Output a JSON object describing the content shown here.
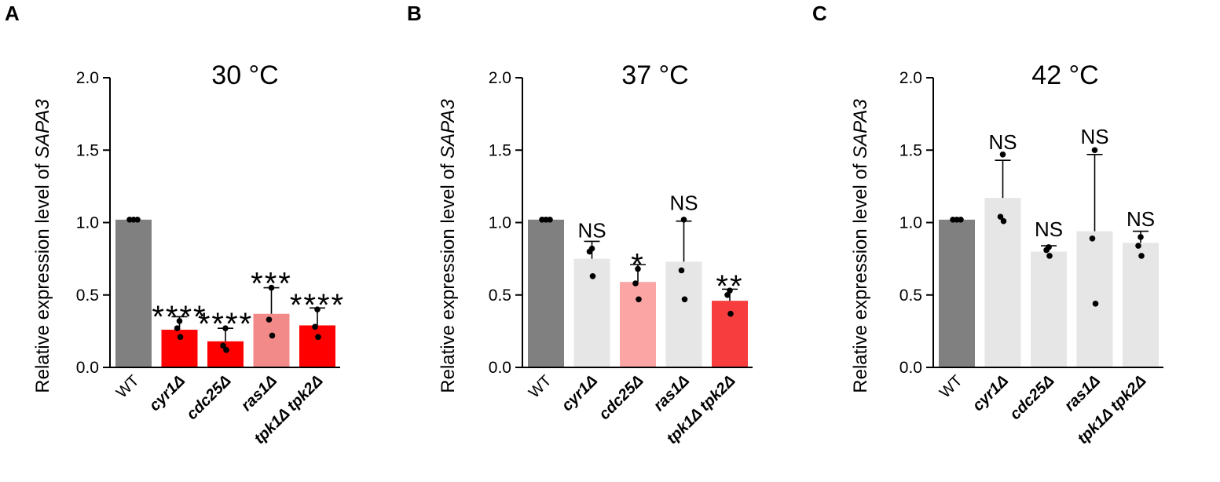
{
  "chart_data": [
    {
      "type": "bar",
      "panel": "A",
      "title": "30 °C",
      "ylabel_prefix": "Relative expression level of ",
      "ylabel_gene": "SAPA3",
      "ylim": [
        0,
        2.0
      ],
      "yticks": [
        "0.0",
        "0.5",
        "1.0",
        "1.5",
        "2.0"
      ],
      "categories": [
        "WT",
        "cyr1Δ",
        "cdc25Δ",
        "ras1Δ",
        "tpk1Δ tpk2Δ"
      ],
      "values": [
        1.02,
        0.26,
        0.18,
        0.37,
        0.29
      ],
      "errors": [
        0.0,
        0.09,
        0.09,
        0.18,
        0.12
      ],
      "points": [
        [
          1.02,
          1.02,
          1.02
        ],
        [
          0.32,
          0.27,
          0.21
        ],
        [
          0.27,
          0.15,
          0.12
        ],
        [
          0.55,
          0.33,
          0.22
        ],
        [
          0.4,
          0.28,
          0.21
        ]
      ],
      "significance": [
        "",
        "****",
        "****",
        "***",
        "****"
      ],
      "colors": [
        "#808080",
        "#ff0000",
        "#ff0000",
        "#f28a8a",
        "#ff0000"
      ]
    },
    {
      "type": "bar",
      "panel": "B",
      "title": "37 °C",
      "ylabel_prefix": "Relative expression level of ",
      "ylabel_gene": "SAPA3",
      "ylim": [
        0,
        2.0
      ],
      "yticks": [
        "0.0",
        "0.5",
        "1.0",
        "1.5",
        "2.0"
      ],
      "categories": [
        "WT",
        "cyr1Δ",
        "cdc25Δ",
        "ras1Δ",
        "tpk1Δ tpk2Δ"
      ],
      "values": [
        1.02,
        0.75,
        0.59,
        0.73,
        0.46
      ],
      "errors": [
        0.0,
        0.12,
        0.12,
        0.28,
        0.08
      ],
      "points": [
        [
          1.02,
          1.02,
          1.02
        ],
        [
          0.82,
          0.8,
          0.63
        ],
        [
          0.68,
          0.58,
          0.47
        ],
        [
          1.02,
          0.67,
          0.47
        ],
        [
          0.53,
          0.5,
          0.37
        ]
      ],
      "significance": [
        "",
        "NS",
        "*",
        "NS",
        "**"
      ],
      "colors": [
        "#808080",
        "#e6e6e6",
        "#fba5a5",
        "#e6e6e6",
        "#f73d3d"
      ]
    },
    {
      "type": "bar",
      "panel": "C",
      "title": "42 °C",
      "ylabel_prefix": "Relative expression level of ",
      "ylabel_gene": "SAPA3",
      "ylim": [
        0,
        2.0
      ],
      "yticks": [
        "0.0",
        "0.5",
        "1.0",
        "1.5",
        "2.0"
      ],
      "categories": [
        "WT",
        "cyr1Δ",
        "cdc25Δ",
        "ras1Δ",
        "tpk1Δ tpk2Δ"
      ],
      "values": [
        1.02,
        1.17,
        0.8,
        0.94,
        0.86
      ],
      "errors": [
        0.0,
        0.26,
        0.04,
        0.53,
        0.08
      ],
      "points": [
        [
          1.02,
          1.02,
          1.02
        ],
        [
          1.47,
          1.04,
          1.01
        ],
        [
          0.83,
          0.81,
          0.77
        ],
        [
          1.5,
          0.89,
          0.44
        ],
        [
          0.9,
          0.84,
          0.77
        ]
      ],
      "significance": [
        "",
        "NS",
        "NS",
        "NS",
        "NS"
      ],
      "colors": [
        "#808080",
        "#e6e6e6",
        "#e6e6e6",
        "#e6e6e6",
        "#e6e6e6"
      ]
    }
  ]
}
